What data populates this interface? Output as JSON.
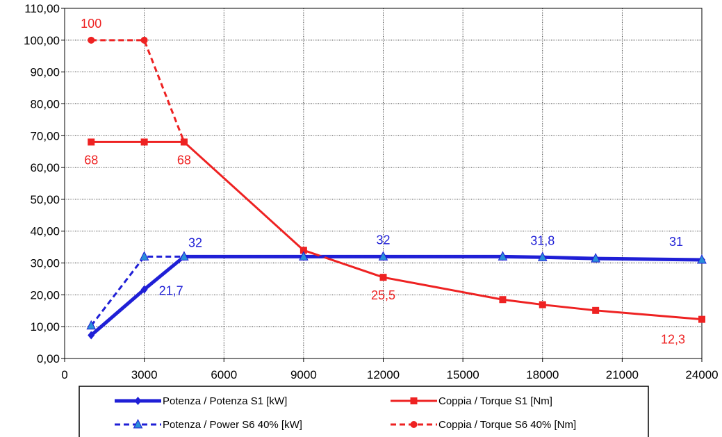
{
  "chart_data": {
    "type": "line",
    "xlim": [
      0,
      24000
    ],
    "ylim": [
      0,
      110
    ],
    "x_ticks": [
      "0",
      "3000",
      "6000",
      "9000",
      "12000",
      "15000",
      "18000",
      "21000",
      "24000"
    ],
    "y_ticks": [
      "0,00",
      "10,00",
      "20,00",
      "30,00",
      "40,00",
      "50,00",
      "60,00",
      "70,00",
      "80,00",
      "90,00",
      "100,00",
      "110,00"
    ],
    "grid": true,
    "legend_position": "bottom",
    "series": [
      {
        "name": "Potenza / Potenza S1 [kW]",
        "color": "#1f1fd6",
        "style": "solid",
        "marker": "diamond",
        "points": [
          [
            1000,
            7.3
          ],
          [
            3000,
            21.7
          ],
          [
            4500,
            32
          ],
          [
            9000,
            32
          ],
          [
            12000,
            32
          ],
          [
            16500,
            32
          ],
          [
            18000,
            31.8
          ],
          [
            20000,
            31.4
          ],
          [
            24000,
            31
          ]
        ]
      },
      {
        "name": "Potenza / Power S6 40% [kW]",
        "color": "#1f1fd6",
        "style": "dashed",
        "marker": "triangle",
        "points": [
          [
            1000,
            10.3
          ],
          [
            3000,
            32
          ],
          [
            4500,
            32
          ],
          [
            9000,
            32
          ],
          [
            12000,
            32
          ],
          [
            16500,
            32
          ],
          [
            18000,
            31.8
          ],
          [
            20000,
            31.4
          ],
          [
            24000,
            31
          ]
        ]
      },
      {
        "name": "Coppia / Torque S1 [Nm]",
        "color": "#ee2222",
        "style": "solid",
        "marker": "square",
        "points": [
          [
            1000,
            68
          ],
          [
            3000,
            68
          ],
          [
            4500,
            68
          ],
          [
            9000,
            34
          ],
          [
            12000,
            25.5
          ],
          [
            16500,
            18.5
          ],
          [
            18000,
            16.9
          ],
          [
            20000,
            15.1
          ],
          [
            24000,
            12.3
          ]
        ]
      },
      {
        "name": "Coppia / Torque S6 40% [Nm]",
        "color": "#ee2222",
        "style": "dashed",
        "marker": "circle",
        "points": [
          [
            1000,
            100
          ],
          [
            3000,
            100
          ],
          [
            4500,
            68
          ]
        ]
      }
    ],
    "data_labels": [
      {
        "text": "100",
        "x": 1000,
        "y": 100,
        "color": "#ee2222",
        "anchor": "above"
      },
      {
        "text": "68",
        "x": 1000,
        "y": 68,
        "color": "#ee2222",
        "anchor": "below"
      },
      {
        "text": "68",
        "x": 4500,
        "y": 68,
        "color": "#ee2222",
        "anchor": "below"
      },
      {
        "text": "32",
        "x": 4500,
        "y": 32,
        "color": "#1f1fd6",
        "anchor": "above-right"
      },
      {
        "text": "21,7",
        "x": 3000,
        "y": 21.7,
        "color": "#1f1fd6",
        "anchor": "right"
      },
      {
        "text": "32",
        "x": 12000,
        "y": 32,
        "color": "#1f1fd6",
        "anchor": "above"
      },
      {
        "text": "25,5",
        "x": 12000,
        "y": 25.5,
        "color": "#ee2222",
        "anchor": "below"
      },
      {
        "text": "31,8",
        "x": 18000,
        "y": 31.8,
        "color": "#1f1fd6",
        "anchor": "above"
      },
      {
        "text": "31",
        "x": 24000,
        "y": 31,
        "color": "#1f1fd6",
        "anchor": "above-left"
      },
      {
        "text": "12,3",
        "x": 24000,
        "y": 12.3,
        "color": "#ee2222",
        "anchor": "below-left"
      }
    ]
  }
}
